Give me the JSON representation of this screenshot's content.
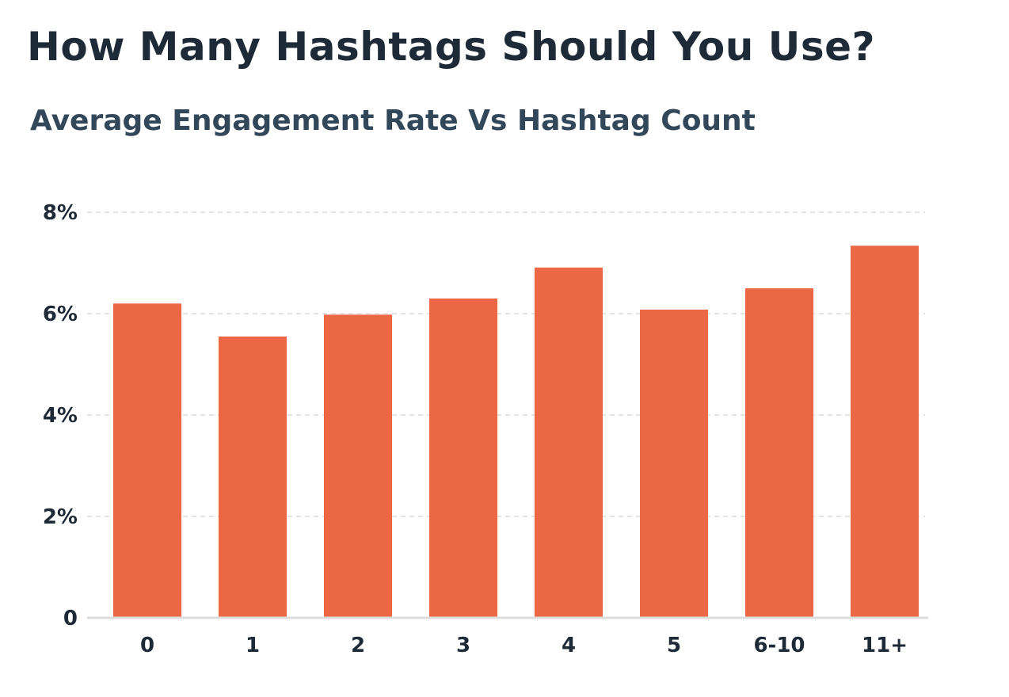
{
  "chart_data": {
    "type": "bar",
    "title": "How Many Hashtags Should You Use?",
    "subtitle": "Average Engagement Rate Vs Hashtag Count",
    "xlabel": "",
    "ylabel": "",
    "categories": [
      "0",
      "1",
      "2",
      "3",
      "4",
      "5",
      "6-10",
      "11+"
    ],
    "values": [
      6.2,
      5.55,
      5.98,
      6.3,
      6.91,
      6.08,
      6.5,
      7.34
    ],
    "ylim": [
      0,
      8
    ],
    "yticks": [
      0,
      2,
      4,
      6,
      8
    ],
    "ytick_labels": [
      "0",
      "2%",
      "4%",
      "6%",
      "8%"
    ],
    "grid": true,
    "grid_style": "dashed",
    "bar_color": "#EC6845"
  }
}
